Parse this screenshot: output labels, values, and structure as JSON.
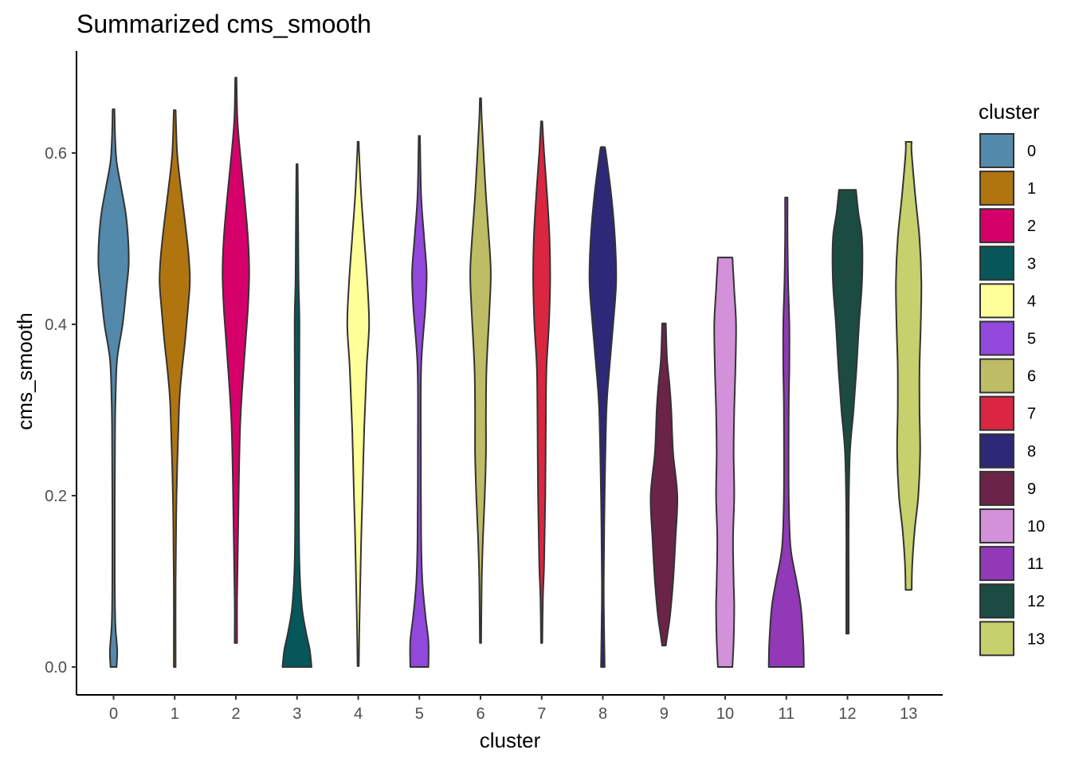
{
  "chart_data": {
    "type": "violin",
    "title": "Summarized cms_smooth",
    "xlabel": "cluster",
    "ylabel": "cms_smooth",
    "ylim": [
      -0.03,
      0.72
    ],
    "yticks": [
      "0.0",
      "0.2",
      "0.4",
      "0.6"
    ],
    "ytick_values": [
      0.0,
      0.2,
      0.4,
      0.6
    ],
    "legend": {
      "title": "cluster",
      "placement": "right"
    },
    "grid": false,
    "series": [
      {
        "name": "0",
        "color": "#5389aa",
        "min": 0.0,
        "max": 0.651,
        "profile": [
          [
            0.0,
            0.1
          ],
          [
            0.02,
            0.12
          ],
          [
            0.05,
            0.06
          ],
          [
            0.1,
            0.04
          ],
          [
            0.2,
            0.04
          ],
          [
            0.28,
            0.05
          ],
          [
            0.32,
            0.07
          ],
          [
            0.36,
            0.12
          ],
          [
            0.4,
            0.3
          ],
          [
            0.44,
            0.42
          ],
          [
            0.47,
            0.5
          ],
          [
            0.5,
            0.48
          ],
          [
            0.53,
            0.4
          ],
          [
            0.56,
            0.25
          ],
          [
            0.59,
            0.1
          ],
          [
            0.62,
            0.05
          ],
          [
            0.651,
            0.03
          ]
        ]
      },
      {
        "name": "1",
        "color": "#b17510",
        "min": 0.0,
        "max": 0.65,
        "profile": [
          [
            0.0,
            0.03
          ],
          [
            0.1,
            0.03
          ],
          [
            0.2,
            0.06
          ],
          [
            0.3,
            0.14
          ],
          [
            0.34,
            0.22
          ],
          [
            0.38,
            0.34
          ],
          [
            0.42,
            0.44
          ],
          [
            0.45,
            0.5
          ],
          [
            0.48,
            0.46
          ],
          [
            0.52,
            0.34
          ],
          [
            0.56,
            0.2
          ],
          [
            0.6,
            0.08
          ],
          [
            0.65,
            0.03
          ]
        ]
      },
      {
        "name": "2",
        "color": "#d6006b",
        "min": 0.028,
        "max": 0.688,
        "profile": [
          [
            0.028,
            0.04
          ],
          [
            0.08,
            0.04
          ],
          [
            0.15,
            0.07
          ],
          [
            0.22,
            0.1
          ],
          [
            0.28,
            0.14
          ],
          [
            0.32,
            0.2
          ],
          [
            0.38,
            0.32
          ],
          [
            0.42,
            0.4
          ],
          [
            0.46,
            0.44
          ],
          [
            0.5,
            0.4
          ],
          [
            0.55,
            0.28
          ],
          [
            0.6,
            0.14
          ],
          [
            0.64,
            0.05
          ],
          [
            0.688,
            0.02
          ]
        ]
      },
      {
        "name": "3",
        "color": "#05575a",
        "min": 0.0,
        "max": 0.587,
        "profile": [
          [
            0.0,
            0.48
          ],
          [
            0.02,
            0.42
          ],
          [
            0.04,
            0.3
          ],
          [
            0.07,
            0.16
          ],
          [
            0.12,
            0.08
          ],
          [
            0.2,
            0.06
          ],
          [
            0.3,
            0.07
          ],
          [
            0.4,
            0.08
          ],
          [
            0.45,
            0.05
          ],
          [
            0.5,
            0.04
          ],
          [
            0.55,
            0.03
          ],
          [
            0.587,
            0.02
          ]
        ]
      },
      {
        "name": "4",
        "color": "#ffff99",
        "min": 0.001,
        "max": 0.613,
        "profile": [
          [
            0.001,
            0.02
          ],
          [
            0.05,
            0.04
          ],
          [
            0.1,
            0.07
          ],
          [
            0.15,
            0.1
          ],
          [
            0.2,
            0.14
          ],
          [
            0.28,
            0.2
          ],
          [
            0.35,
            0.28
          ],
          [
            0.4,
            0.36
          ],
          [
            0.45,
            0.3
          ],
          [
            0.5,
            0.2
          ],
          [
            0.55,
            0.1
          ],
          [
            0.6,
            0.03
          ],
          [
            0.613,
            0.02
          ]
        ]
      },
      {
        "name": "5",
        "color": "#9248db",
        "min": 0.0,
        "max": 0.62,
        "profile": [
          [
            0.0,
            0.3
          ],
          [
            0.03,
            0.3
          ],
          [
            0.06,
            0.2
          ],
          [
            0.1,
            0.1
          ],
          [
            0.15,
            0.06
          ],
          [
            0.25,
            0.05
          ],
          [
            0.35,
            0.06
          ],
          [
            0.42,
            0.2
          ],
          [
            0.46,
            0.24
          ],
          [
            0.5,
            0.16
          ],
          [
            0.55,
            0.06
          ],
          [
            0.62,
            0.02
          ]
        ]
      },
      {
        "name": "6",
        "color": "#bcbd64",
        "min": 0.028,
        "max": 0.664,
        "profile": [
          [
            0.028,
            0.02
          ],
          [
            0.1,
            0.04
          ],
          [
            0.15,
            0.08
          ],
          [
            0.2,
            0.14
          ],
          [
            0.25,
            0.18
          ],
          [
            0.3,
            0.18
          ],
          [
            0.35,
            0.2
          ],
          [
            0.42,
            0.3
          ],
          [
            0.46,
            0.34
          ],
          [
            0.5,
            0.28
          ],
          [
            0.55,
            0.18
          ],
          [
            0.6,
            0.1
          ],
          [
            0.64,
            0.04
          ],
          [
            0.664,
            0.02
          ]
        ]
      },
      {
        "name": "7",
        "color": "#da2640",
        "min": 0.028,
        "max": 0.637,
        "profile": [
          [
            0.028,
            0.02
          ],
          [
            0.08,
            0.04
          ],
          [
            0.12,
            0.08
          ],
          [
            0.2,
            0.12
          ],
          [
            0.3,
            0.14
          ],
          [
            0.35,
            0.16
          ],
          [
            0.4,
            0.24
          ],
          [
            0.45,
            0.28
          ],
          [
            0.5,
            0.26
          ],
          [
            0.55,
            0.18
          ],
          [
            0.6,
            0.08
          ],
          [
            0.637,
            0.02
          ]
        ]
      },
      {
        "name": "8",
        "color": "#2d2878",
        "min": 0.0,
        "max": 0.607,
        "profile": [
          [
            0.0,
            0.06
          ],
          [
            0.05,
            0.04
          ],
          [
            0.1,
            0.03
          ],
          [
            0.2,
            0.06
          ],
          [
            0.3,
            0.12
          ],
          [
            0.35,
            0.22
          ],
          [
            0.4,
            0.34
          ],
          [
            0.45,
            0.44
          ],
          [
            0.5,
            0.4
          ],
          [
            0.55,
            0.28
          ],
          [
            0.6,
            0.1
          ],
          [
            0.607,
            0.06
          ]
        ]
      },
      {
        "name": "9",
        "color": "#6b2348",
        "min": 0.025,
        "max": 0.401,
        "profile": [
          [
            0.025,
            0.06
          ],
          [
            0.04,
            0.12
          ],
          [
            0.06,
            0.2
          ],
          [
            0.1,
            0.3
          ],
          [
            0.15,
            0.38
          ],
          [
            0.2,
            0.44
          ],
          [
            0.25,
            0.3
          ],
          [
            0.3,
            0.24
          ],
          [
            0.33,
            0.18
          ],
          [
            0.36,
            0.1
          ],
          [
            0.401,
            0.06
          ]
        ]
      },
      {
        "name": "10",
        "color": "#d291d8",
        "min": 0.0,
        "max": 0.478,
        "profile": [
          [
            0.0,
            0.24
          ],
          [
            0.03,
            0.28
          ],
          [
            0.07,
            0.3
          ],
          [
            0.1,
            0.28
          ],
          [
            0.15,
            0.26
          ],
          [
            0.2,
            0.3
          ],
          [
            0.25,
            0.28
          ],
          [
            0.3,
            0.3
          ],
          [
            0.35,
            0.34
          ],
          [
            0.4,
            0.36
          ],
          [
            0.44,
            0.3
          ],
          [
            0.478,
            0.24
          ]
        ]
      },
      {
        "name": "11",
        "color": "#9139b6",
        "min": 0.0,
        "max": 0.548,
        "profile": [
          [
            0.0,
            0.58
          ],
          [
            0.03,
            0.56
          ],
          [
            0.07,
            0.48
          ],
          [
            0.1,
            0.34
          ],
          [
            0.14,
            0.14
          ],
          [
            0.2,
            0.08
          ],
          [
            0.3,
            0.08
          ],
          [
            0.35,
            0.1
          ],
          [
            0.4,
            0.1
          ],
          [
            0.45,
            0.06
          ],
          [
            0.5,
            0.04
          ],
          [
            0.548,
            0.04
          ]
        ]
      },
      {
        "name": "12",
        "color": "#1b4b43",
        "min": 0.039,
        "max": 0.557,
        "profile": [
          [
            0.039,
            0.04
          ],
          [
            0.1,
            0.04
          ],
          [
            0.18,
            0.04
          ],
          [
            0.25,
            0.08
          ],
          [
            0.3,
            0.2
          ],
          [
            0.35,
            0.3
          ],
          [
            0.4,
            0.38
          ],
          [
            0.45,
            0.48
          ],
          [
            0.5,
            0.48
          ],
          [
            0.53,
            0.36
          ],
          [
            0.557,
            0.28
          ]
        ]
      },
      {
        "name": "13",
        "color": "#c6d06c",
        "min": 0.09,
        "max": 0.613,
        "profile": [
          [
            0.09,
            0.1
          ],
          [
            0.12,
            0.12
          ],
          [
            0.16,
            0.2
          ],
          [
            0.2,
            0.32
          ],
          [
            0.25,
            0.38
          ],
          [
            0.3,
            0.36
          ],
          [
            0.35,
            0.36
          ],
          [
            0.4,
            0.4
          ],
          [
            0.45,
            0.42
          ],
          [
            0.5,
            0.36
          ],
          [
            0.55,
            0.22
          ],
          [
            0.6,
            0.1
          ],
          [
            0.613,
            0.1
          ]
        ]
      }
    ]
  }
}
